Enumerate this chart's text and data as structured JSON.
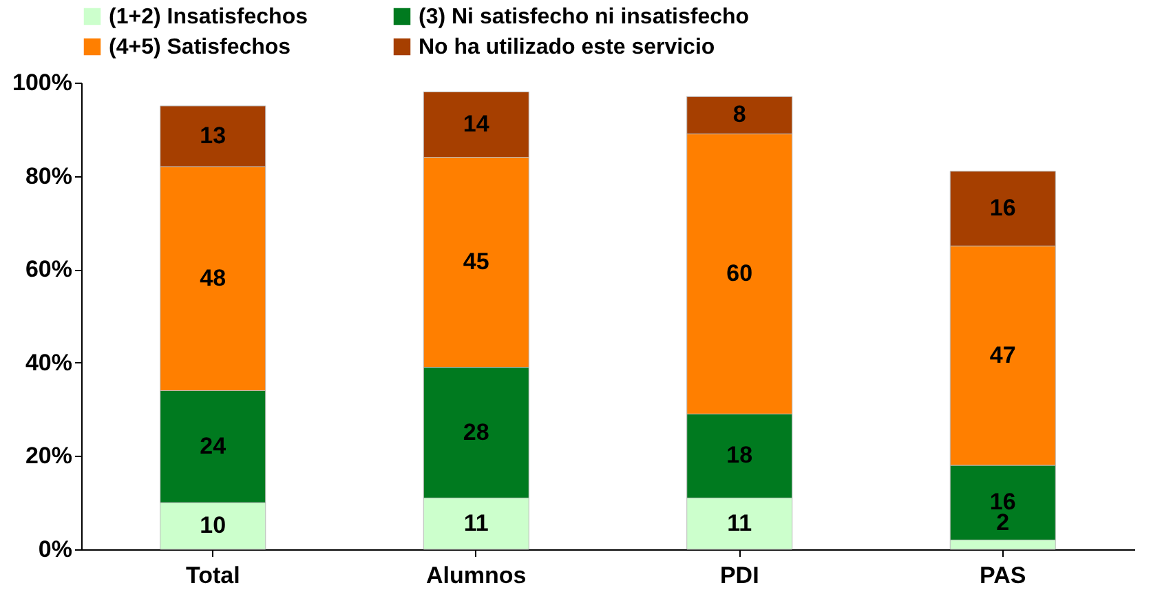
{
  "chart_data": {
    "type": "bar",
    "stacked": true,
    "categories": [
      "Total",
      "Alumnos",
      "PDI",
      "PAS"
    ],
    "series": [
      {
        "name": "(1+2) Insatisfechos",
        "color": "#ccffcc",
        "values": [
          10,
          11,
          11,
          2
        ]
      },
      {
        "name": "(3) Ni satisfecho ni insatisfecho",
        "color": "#007a1f",
        "values": [
          24,
          28,
          18,
          16
        ]
      },
      {
        "name": "(4+5) Satisfechos",
        "color": "#ff7f00",
        "values": [
          48,
          45,
          60,
          47
        ]
      },
      {
        "name": "No ha utilizado este servicio",
        "color": "#a63f00",
        "values": [
          13,
          14,
          8,
          16
        ]
      }
    ],
    "data_labels": true,
    "ylim": [
      0,
      100
    ],
    "yticks": [
      {
        "value": 0,
        "label": "0%"
      },
      {
        "value": 20,
        "label": "20%"
      },
      {
        "value": 40,
        "label": "40%"
      },
      {
        "value": 60,
        "label": "60%"
      },
      {
        "value": 80,
        "label": "80%"
      },
      {
        "value": 100,
        "label": "100%"
      }
    ],
    "legend": "top"
  }
}
